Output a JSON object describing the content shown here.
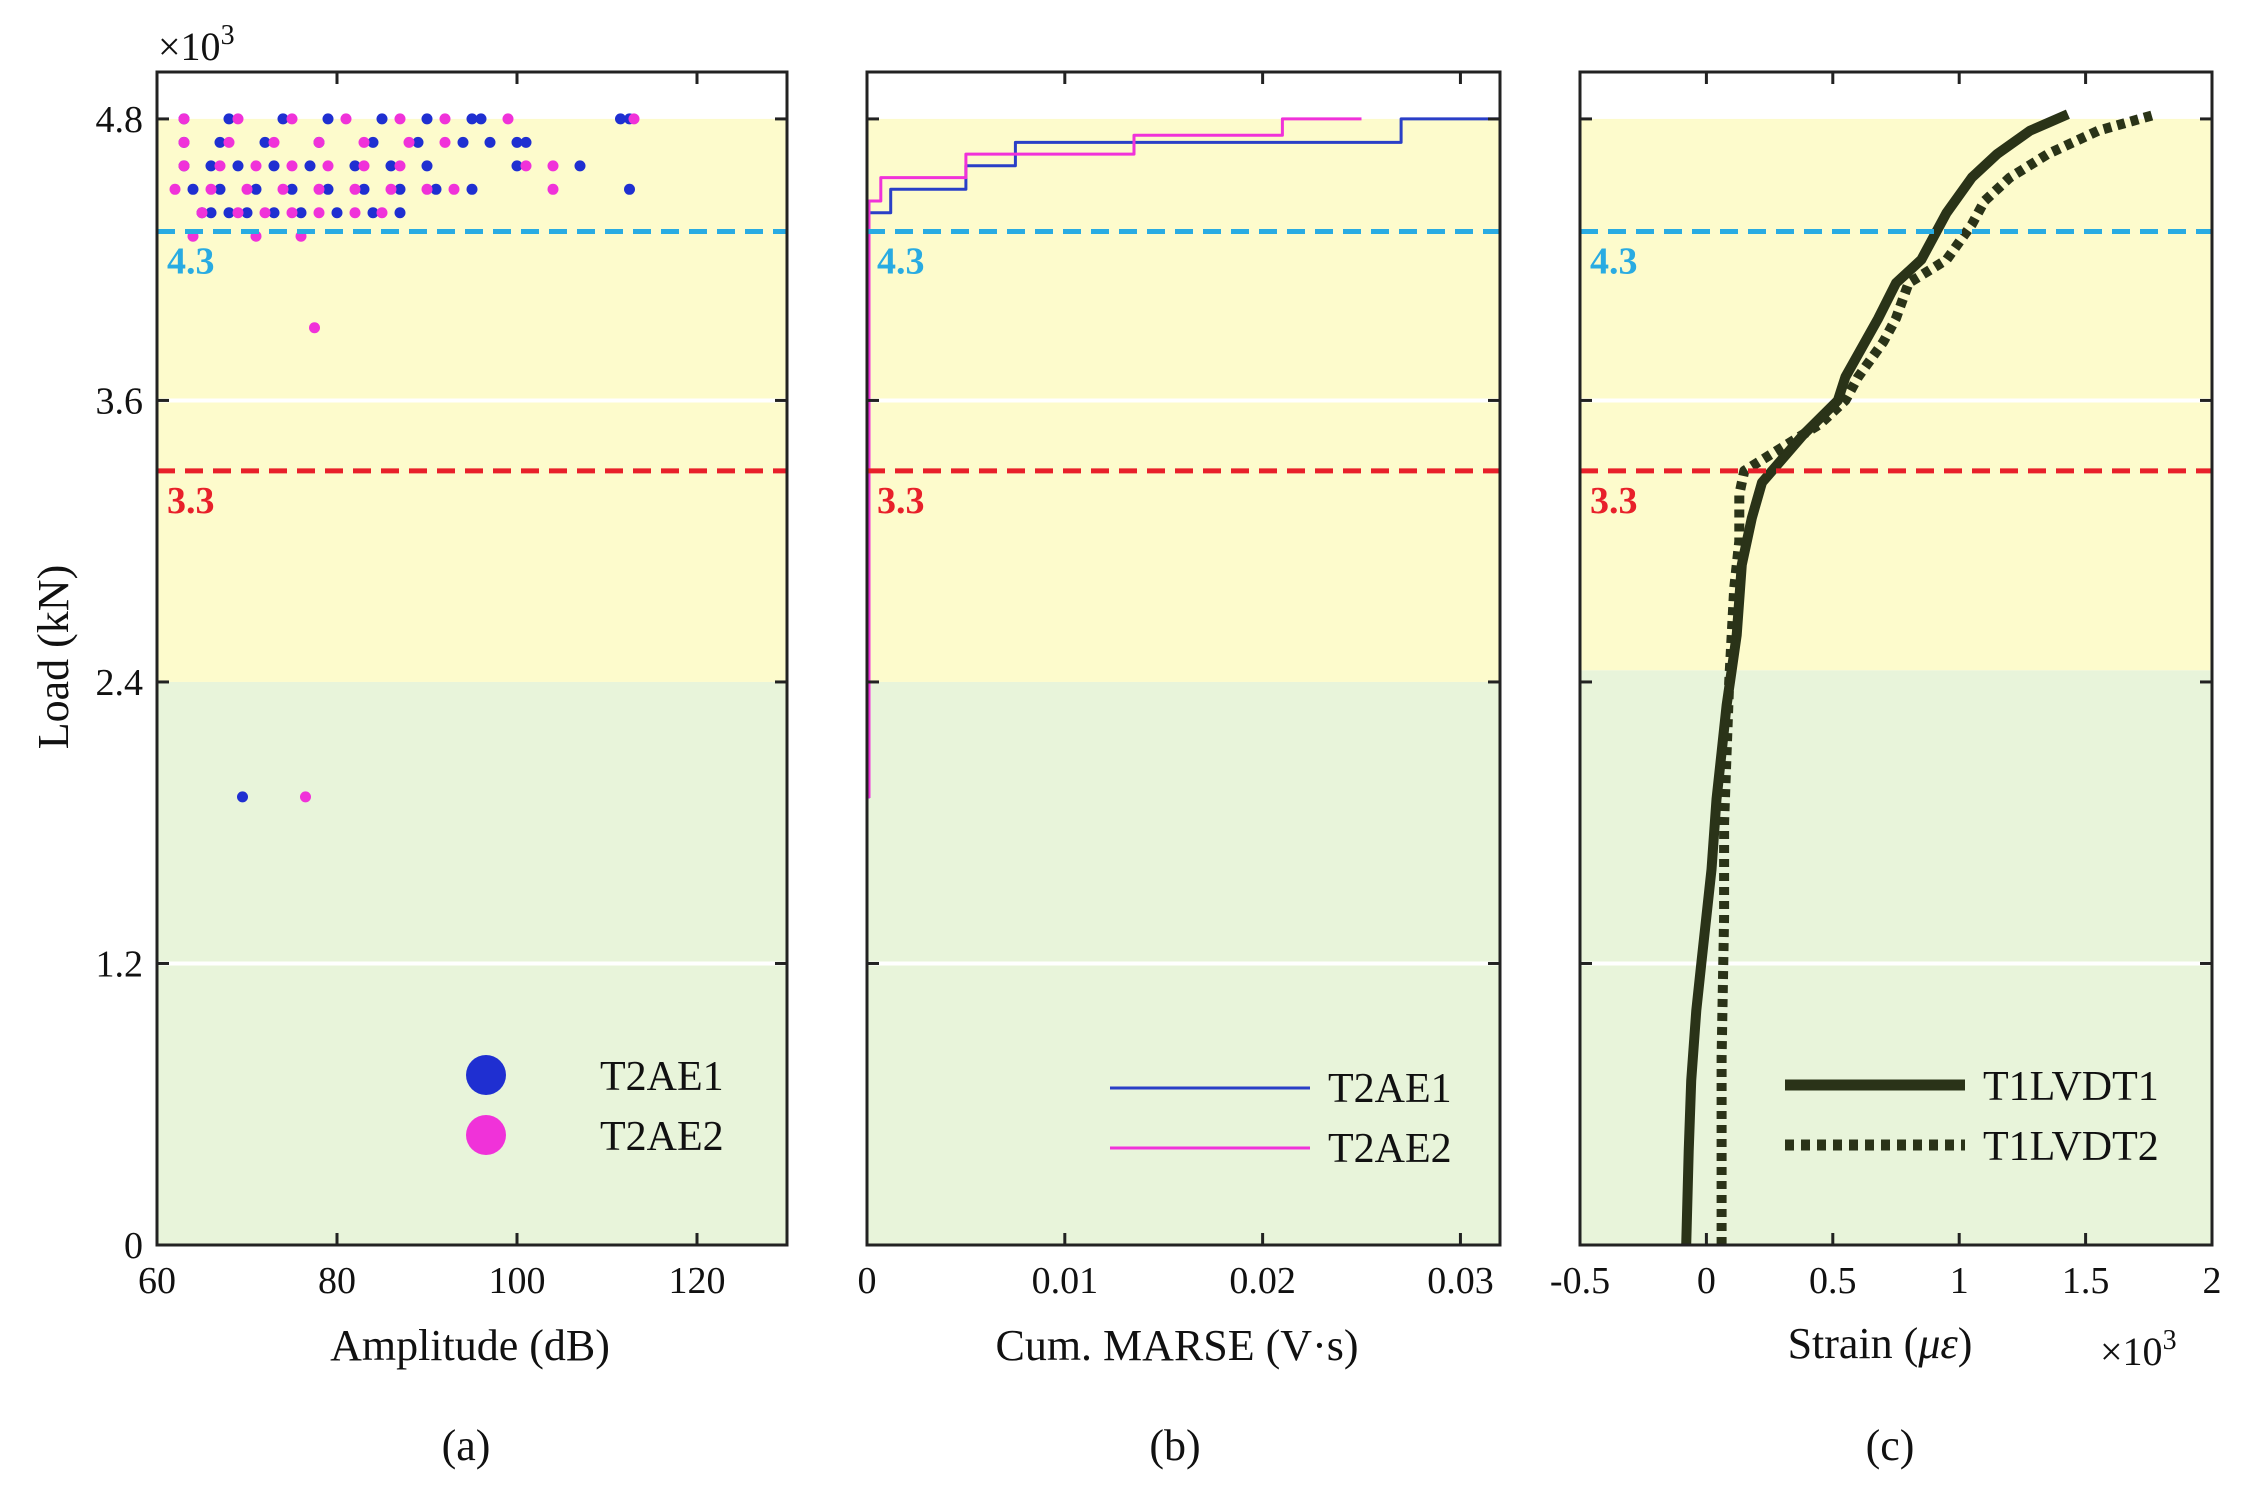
{
  "chart_data": [
    {
      "id": "a",
      "type": "scatter",
      "panel_label": "(a)",
      "xlabel": "Amplitude (dB)",
      "ylabel": "Load (kN)",
      "y_multiplier": "×10^3",
      "xlim": [
        60,
        130
      ],
      "ylim": [
        0,
        5.0
      ],
      "xticks": [
        60,
        80,
        100,
        120
      ],
      "xtick_labels": [
        "60",
        "80",
        "100",
        "120"
      ],
      "yticks": [
        0,
        1.2,
        2.4,
        3.6,
        4.8
      ],
      "ytick_labels": [
        "0",
        "1.2",
        "2.4",
        "3.6",
        "4.8"
      ],
      "zones": [
        {
          "from": 0,
          "to": 2.4,
          "color": "#e8f4da"
        },
        {
          "from": 2.4,
          "to": 4.8,
          "color": "#fdfbcc"
        }
      ],
      "annotations": [
        {
          "y": 4.32,
          "label": "4.3",
          "color": "#29abe2"
        },
        {
          "y": 3.3,
          "label": "3.3",
          "color": "#e8202a"
        }
      ],
      "series": [
        {
          "name": "T2AE1",
          "color": "#1f2fd1",
          "points": [
            [
              69.5,
              1.91
            ],
            [
              65,
              4.4
            ],
            [
              66,
              4.4
            ],
            [
              68,
              4.4
            ],
            [
              70,
              4.4
            ],
            [
              73,
              4.4
            ],
            [
              76,
              4.4
            ],
            [
              80,
              4.4
            ],
            [
              84,
              4.4
            ],
            [
              87,
              4.4
            ],
            [
              64,
              4.5
            ],
            [
              67,
              4.5
            ],
            [
              71,
              4.5
            ],
            [
              75,
              4.5
            ],
            [
              79,
              4.5
            ],
            [
              83,
              4.5
            ],
            [
              87,
              4.5
            ],
            [
              91,
              4.5
            ],
            [
              95,
              4.5
            ],
            [
              112.5,
              4.5
            ],
            [
              63,
              4.6
            ],
            [
              66,
              4.6
            ],
            [
              69,
              4.6
            ],
            [
              73,
              4.6
            ],
            [
              77,
              4.6
            ],
            [
              82,
              4.6
            ],
            [
              86,
              4.6
            ],
            [
              90,
              4.6
            ],
            [
              100,
              4.6
            ],
            [
              107,
              4.6
            ],
            [
              63,
              4.7
            ],
            [
              67,
              4.7
            ],
            [
              72,
              4.7
            ],
            [
              78,
              4.7
            ],
            [
              84,
              4.7
            ],
            [
              89,
              4.7
            ],
            [
              94,
              4.7
            ],
            [
              97,
              4.7
            ],
            [
              100,
              4.7
            ],
            [
              101,
              4.7
            ],
            [
              63,
              4.8
            ],
            [
              68,
              4.8
            ],
            [
              74,
              4.8
            ],
            [
              79,
              4.8
            ],
            [
              85,
              4.8
            ],
            [
              90,
              4.8
            ],
            [
              95,
              4.8
            ],
            [
              96,
              4.8
            ],
            [
              111.5,
              4.8
            ],
            [
              112.5,
              4.8
            ]
          ]
        },
        {
          "name": "T2AE2",
          "color": "#f032d9",
          "points": [
            [
              76.5,
              1.91
            ],
            [
              77.5,
              3.91
            ],
            [
              64,
              4.3
            ],
            [
              71,
              4.3
            ],
            [
              76,
              4.3
            ],
            [
              65,
              4.4
            ],
            [
              69,
              4.4
            ],
            [
              72,
              4.4
            ],
            [
              75,
              4.4
            ],
            [
              78,
              4.4
            ],
            [
              82,
              4.4
            ],
            [
              85,
              4.4
            ],
            [
              62,
              4.5
            ],
            [
              66,
              4.5
            ],
            [
              70,
              4.5
            ],
            [
              74,
              4.5
            ],
            [
              78,
              4.5
            ],
            [
              82,
              4.5
            ],
            [
              86,
              4.5
            ],
            [
              90,
              4.5
            ],
            [
              93,
              4.5
            ],
            [
              104,
              4.5
            ],
            [
              63,
              4.6
            ],
            [
              67,
              4.6
            ],
            [
              71,
              4.6
            ],
            [
              75,
              4.6
            ],
            [
              79,
              4.6
            ],
            [
              83,
              4.6
            ],
            [
              87,
              4.6
            ],
            [
              101,
              4.6
            ],
            [
              104,
              4.6
            ],
            [
              63,
              4.7
            ],
            [
              68,
              4.7
            ],
            [
              73,
              4.7
            ],
            [
              78,
              4.7
            ],
            [
              83,
              4.7
            ],
            [
              88,
              4.7
            ],
            [
              92,
              4.7
            ],
            [
              63,
              4.8
            ],
            [
              69,
              4.8
            ],
            [
              75,
              4.8
            ],
            [
              81,
              4.8
            ],
            [
              87,
              4.8
            ],
            [
              92,
              4.8
            ],
            [
              99,
              4.8
            ],
            [
              113,
              4.8
            ]
          ]
        }
      ]
    },
    {
      "id": "b",
      "type": "line",
      "panel_label": "(b)",
      "xlabel": "Cum. MARSE (V·s)",
      "xlim": [
        0,
        0.032
      ],
      "ylim": [
        0,
        5.0
      ],
      "xticks": [
        0,
        0.01,
        0.02,
        0.03
      ],
      "xtick_labels": [
        "0",
        "0.01",
        "0.02",
        "0.03"
      ],
      "yticks": [
        0,
        1.2,
        2.4,
        3.6,
        4.8
      ],
      "zones": [
        {
          "from": 0,
          "to": 2.4,
          "color": "#e8f4da"
        },
        {
          "from": 2.4,
          "to": 4.8,
          "color": "#fdfbcc"
        }
      ],
      "annotations": [
        {
          "y": 4.32,
          "label": "4.3",
          "color": "#29abe2"
        },
        {
          "y": 3.3,
          "label": "3.3",
          "color": "#e8202a"
        }
      ],
      "series": [
        {
          "name": "T2AE1",
          "color": "#2a3fc7",
          "x": [
            0,
            0.0001,
            0.0001,
            0.0012,
            0.0012,
            0.005,
            0.005,
            0.0075,
            0.0075,
            0.0185,
            0.0185,
            0.027,
            0.027,
            0.032
          ],
          "y": [
            1.91,
            1.91,
            4.4,
            4.4,
            4.5,
            4.5,
            4.6,
            4.6,
            4.7,
            4.7,
            4.7,
            4.7,
            4.8,
            4.8
          ]
        },
        {
          "name": "T2AE2",
          "color": "#f032d9",
          "x": [
            0,
            0.0001,
            0.0001,
            0.0007,
            0.0007,
            0.005,
            0.005,
            0.0135,
            0.0135,
            0.021,
            0.021,
            0.025
          ],
          "y": [
            1.91,
            1.91,
            4.45,
            4.45,
            4.55,
            4.55,
            4.65,
            4.65,
            4.73,
            4.73,
            4.8,
            4.8
          ]
        }
      ]
    },
    {
      "id": "c",
      "type": "line",
      "panel_label": "(c)",
      "xlabel": "Strain (με)",
      "x_multiplier": "×10^3",
      "xlim": [
        -0.5,
        2.0
      ],
      "ylim": [
        0,
        5.0
      ],
      "xticks": [
        -0.5,
        0,
        0.5,
        1,
        1.5,
        2
      ],
      "xtick_labels": [
        "-0.5",
        "0",
        "0.5",
        "1",
        "1.5",
        "2"
      ],
      "yticks": [
        0,
        1.2,
        2.4,
        3.6,
        4.8
      ],
      "zones": [
        {
          "from": 0,
          "to": 2.45,
          "color": "#e8f4da"
        },
        {
          "from": 2.45,
          "to": 4.8,
          "color": "#fdfbcc"
        }
      ],
      "annotations": [
        {
          "y": 4.32,
          "label": "4.3",
          "color": "#29abe2"
        },
        {
          "y": 3.3,
          "label": "3.3",
          "color": "#e8202a"
        }
      ],
      "series": [
        {
          "name": "T1LVDT1",
          "color": "#2a3318",
          "style": "solid",
          "x": [
            -0.08,
            -0.07,
            -0.06,
            -0.04,
            -0.02,
            0.02,
            0.04,
            0.06,
            0.08,
            0.1,
            0.12,
            0.14,
            0.18,
            0.22,
            0.26,
            0.38,
            0.52,
            0.55,
            0.68,
            0.75,
            0.85,
            0.95,
            1.05,
            1.15,
            1.28,
            1.43
          ],
          "y": [
            0,
            0.4,
            0.7,
            1.0,
            1.2,
            1.6,
            1.9,
            2.1,
            2.3,
            2.45,
            2.6,
            2.9,
            3.1,
            3.25,
            3.3,
            3.45,
            3.6,
            3.7,
            3.95,
            4.1,
            4.2,
            4.4,
            4.55,
            4.65,
            4.75,
            4.82
          ]
        },
        {
          "name": "T1LVDT2",
          "color": "#2a3318",
          "style": "dotted",
          "x": [
            0.06,
            0.06,
            0.07,
            0.07,
            0.08,
            0.09,
            0.1,
            0.11,
            0.13,
            0.13,
            0.15,
            0.3,
            0.45,
            0.55,
            0.6,
            0.7,
            0.75,
            0.8,
            0.95,
            1.05,
            1.1,
            1.2,
            1.35,
            1.55,
            1.78
          ],
          "y": [
            0,
            0.8,
            1.4,
            1.8,
            2.1,
            2.4,
            2.6,
            2.8,
            3.0,
            3.2,
            3.3,
            3.4,
            3.5,
            3.6,
            3.7,
            3.85,
            3.95,
            4.1,
            4.2,
            4.35,
            4.45,
            4.55,
            4.65,
            4.75,
            4.82
          ]
        }
      ]
    }
  ]
}
